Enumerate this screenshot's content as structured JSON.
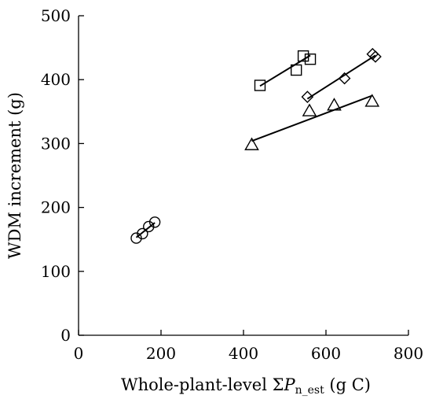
{
  "chart_data": {
    "type": "scatter",
    "title": "",
    "xlabel": {
      "prefix": "Whole-plant-level ",
      "sigma": "Σ",
      "symbol": "P",
      "subscript": "n_est",
      "unit": " (g C)"
    },
    "ylabel": "WDM increment (g)",
    "xlim": [
      0,
      800
    ],
    "ylim": [
      0,
      500
    ],
    "x_ticks": [
      0,
      200,
      400,
      600,
      800
    ],
    "y_ticks": [
      0,
      100,
      200,
      300,
      400,
      500
    ],
    "x_tick_labels": [
      "0",
      "200",
      "400",
      "600",
      "800"
    ],
    "y_tick_labels": [
      "0",
      "100",
      "200",
      "300",
      "400",
      "500"
    ],
    "grid": false,
    "series": [
      {
        "marker": "circle",
        "points": [
          [
            140,
            152
          ],
          [
            155,
            159
          ],
          [
            170,
            170
          ],
          [
            185,
            177
          ]
        ],
        "fit_line": [
          [
            140,
            153
          ],
          [
            185,
            176
          ]
        ]
      },
      {
        "marker": "square",
        "points": [
          [
            440,
            391
          ],
          [
            528,
            415
          ],
          [
            545,
            437
          ],
          [
            562,
            432
          ]
        ],
        "fit_line": [
          [
            440,
            390
          ],
          [
            562,
            438
          ]
        ]
      },
      {
        "marker": "diamond",
        "points": [
          [
            555,
            373
          ],
          [
            645,
            402
          ],
          [
            713,
            440
          ],
          [
            720,
            436
          ]
        ],
        "fit_line": [
          [
            555,
            370
          ],
          [
            720,
            438
          ]
        ]
      },
      {
        "marker": "triangle",
        "points": [
          [
            420,
            298
          ],
          [
            560,
            351
          ],
          [
            620,
            360
          ],
          [
            712,
            366
          ]
        ],
        "fit_line": [
          [
            420,
            304
          ],
          [
            712,
            375
          ]
        ]
      }
    ]
  }
}
